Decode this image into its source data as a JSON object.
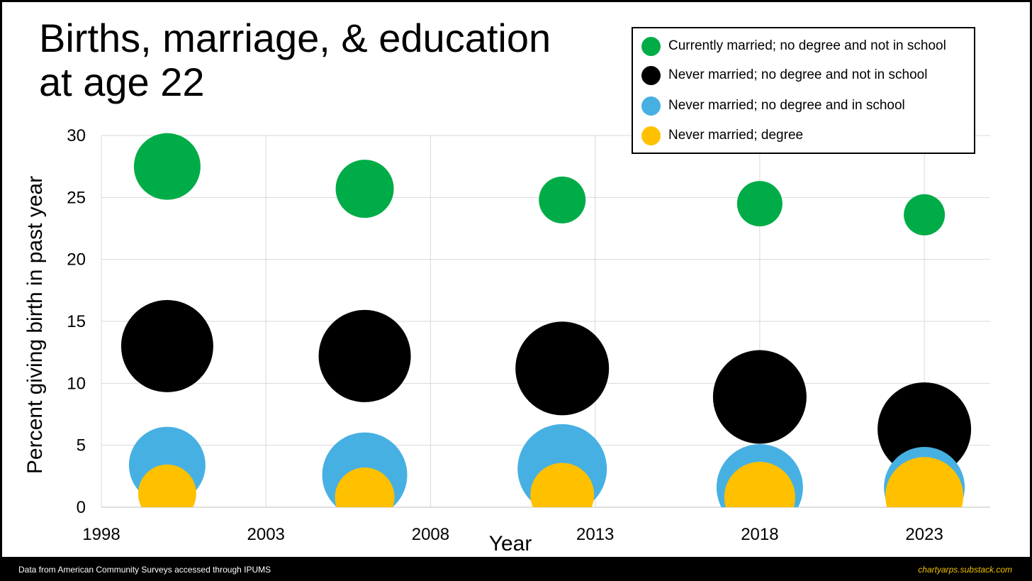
{
  "footer": {
    "source": "Data from American Community Surveys accessed through IPUMS",
    "credit": "chartyarps.substack.com"
  },
  "chart_data": {
    "type": "scatter",
    "subtype": "bubble",
    "title_lines": [
      "Births, marriage, & education",
      "at age 22"
    ],
    "xlabel": "Year",
    "ylabel": "Percent giving birth in past year",
    "xlim": [
      1998,
      2025
    ],
    "ylim": [
      0,
      30
    ],
    "x_ticks": [
      1998,
      2003,
      2008,
      2013,
      2018,
      2023
    ],
    "y_ticks": [
      0,
      5,
      10,
      15,
      20,
      25,
      30
    ],
    "grid": true,
    "legend_position": "top-right",
    "series": [
      {
        "name": "Currently married; no degree and not in school",
        "color": "#00ac47",
        "x": [
          2000,
          2006,
          2012,
          2018,
          2023
        ],
        "y": [
          27.5,
          25.7,
          24.8,
          24.5,
          23.6
        ],
        "size": [
          47,
          41,
          33,
          32,
          29
        ]
      },
      {
        "name": "Never married; no degree and not in school",
        "color": "#000000",
        "x": [
          2000,
          2006,
          2012,
          2018,
          2023
        ],
        "y": [
          13.0,
          12.2,
          11.2,
          8.9,
          6.3
        ],
        "size": [
          65,
          65,
          66,
          66,
          66
        ]
      },
      {
        "name": "Never married; no degree and in school",
        "color": "#47b0e2",
        "x": [
          2000,
          2006,
          2012,
          2018,
          2023
        ],
        "y": [
          3.4,
          2.6,
          3.1,
          1.6,
          1.6
        ],
        "size": [
          54,
          60,
          63,
          61,
          57
        ]
      },
      {
        "name": "Never married; degree",
        "color": "#ffc000",
        "x": [
          2000,
          2006,
          2012,
          2018,
          2023
        ],
        "y": [
          1.1,
          0.8,
          1.0,
          0.8,
          0.9
        ],
        "size": [
          41,
          42,
          45,
          50,
          55
        ]
      }
    ]
  }
}
